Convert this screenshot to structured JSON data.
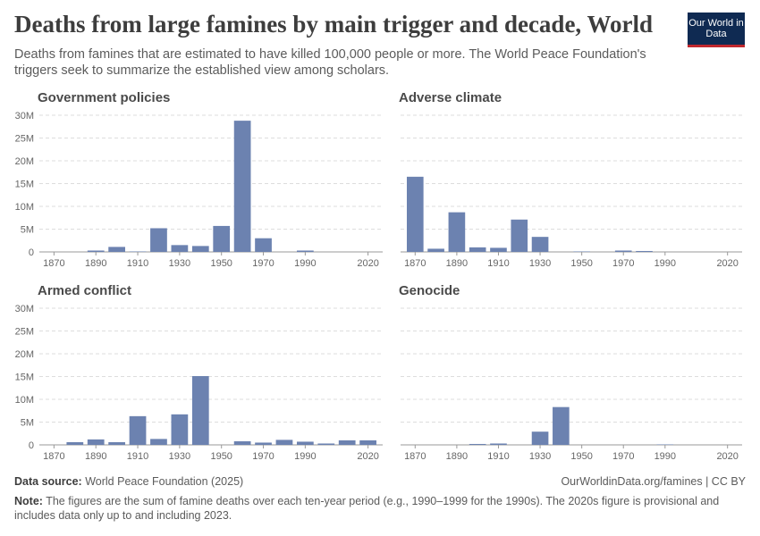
{
  "header": {
    "title": "Deaths from large famines by main trigger and decade, World",
    "subtitle": "Deaths from famines that are estimated to have killed 100,000 people or more. The World Peace Foundation's triggers seek to summarize the established view among scholars.",
    "logo": "Our World in Data"
  },
  "chart_data": [
    {
      "type": "bar",
      "title": "Government policies",
      "color": "#6c82b0",
      "x": [
        1870,
        1880,
        1890,
        1900,
        1910,
        1920,
        1930,
        1940,
        1950,
        1960,
        1970,
        1980,
        1990,
        2000,
        2010,
        2020
      ],
      "values": [
        0,
        0,
        300000,
        1100000,
        100000,
        5200000,
        1500000,
        1300000,
        5700000,
        28800000,
        3000000,
        0,
        300000,
        0,
        0,
        0
      ],
      "xlim": [
        1863,
        2027
      ],
      "xticks": [
        1870,
        1890,
        1910,
        1930,
        1950,
        1970,
        1990,
        2020
      ],
      "ylim": [
        0,
        30000000
      ],
      "yticks": [
        0,
        {
          "value": 5000000,
          "label": "5M"
        },
        {
          "value": 10000000,
          "label": "10M"
        },
        {
          "value": 15000000,
          "label": "15M"
        },
        {
          "value": 20000000,
          "label": "20M"
        },
        {
          "value": 25000000,
          "label": "25M"
        },
        {
          "value": 30000000,
          "label": "30M"
        }
      ],
      "grid": true
    },
    {
      "type": "bar",
      "title": "Adverse climate",
      "color": "#6c82b0",
      "x": [
        1870,
        1880,
        1890,
        1900,
        1910,
        1920,
        1930,
        1940,
        1950,
        1960,
        1970,
        1980,
        1990,
        2000,
        2010,
        2020
      ],
      "values": [
        16500000,
        700000,
        8700000,
        1000000,
        900000,
        7100000,
        3300000,
        0,
        100000,
        0,
        300000,
        200000,
        0,
        0,
        0,
        0
      ],
      "xlim": [
        1863,
        2027
      ],
      "xticks": [
        1870,
        1890,
        1910,
        1930,
        1950,
        1970,
        1990,
        2020
      ],
      "ylim": [
        0,
        30000000
      ],
      "yticks": [
        0,
        5000000,
        10000000,
        15000000,
        20000000,
        25000000,
        30000000
      ],
      "grid": true
    },
    {
      "type": "bar",
      "title": "Armed conflict",
      "color": "#6c82b0",
      "x": [
        1870,
        1880,
        1890,
        1900,
        1910,
        1920,
        1930,
        1940,
        1950,
        1960,
        1970,
        1980,
        1990,
        2000,
        2010,
        2020
      ],
      "values": [
        0,
        600000,
        1200000,
        600000,
        6300000,
        1300000,
        6700000,
        15100000,
        0,
        800000,
        500000,
        1100000,
        700000,
        300000,
        1000000,
        1000000
      ],
      "xlim": [
        1863,
        2027
      ],
      "xticks": [
        1870,
        1890,
        1910,
        1930,
        1950,
        1970,
        1990,
        2020
      ],
      "ylim": [
        0,
        30000000
      ],
      "yticks": [
        0,
        {
          "value": 5000000,
          "label": "5M"
        },
        {
          "value": 10000000,
          "label": "10M"
        },
        {
          "value": 15000000,
          "label": "15M"
        },
        {
          "value": 20000000,
          "label": "20M"
        },
        {
          "value": 25000000,
          "label": "25M"
        },
        {
          "value": 30000000,
          "label": "30M"
        }
      ],
      "grid": true
    },
    {
      "type": "bar",
      "title": "Genocide",
      "color": "#6c82b0",
      "x": [
        1870,
        1880,
        1890,
        1900,
        1910,
        1920,
        1930,
        1940,
        1950,
        1960,
        1970,
        1980,
        1990,
        2000,
        2010,
        2020
      ],
      "values": [
        0,
        0,
        0,
        200000,
        300000,
        0,
        2900000,
        8300000,
        0,
        0,
        0,
        0,
        100000,
        0,
        0,
        0
      ],
      "xlim": [
        1863,
        2027
      ],
      "xticks": [
        1870,
        1890,
        1910,
        1930,
        1950,
        1970,
        1990,
        2020
      ],
      "ylim": [
        0,
        30000000
      ],
      "yticks": [
        0,
        5000000,
        10000000,
        15000000,
        20000000,
        25000000,
        30000000
      ],
      "grid": true
    }
  ],
  "footer": {
    "source_label": "Data source:",
    "source": "World Peace Foundation (2025)",
    "url": "OurWorldinData.org/famines | CC BY",
    "note_label": "Note:",
    "note": "The figures are the sum of famine deaths over each ten-year period (e.g., 1990–1999 for the 1990s). The 2020s figure is provisional and includes data only up to and including 2023."
  }
}
